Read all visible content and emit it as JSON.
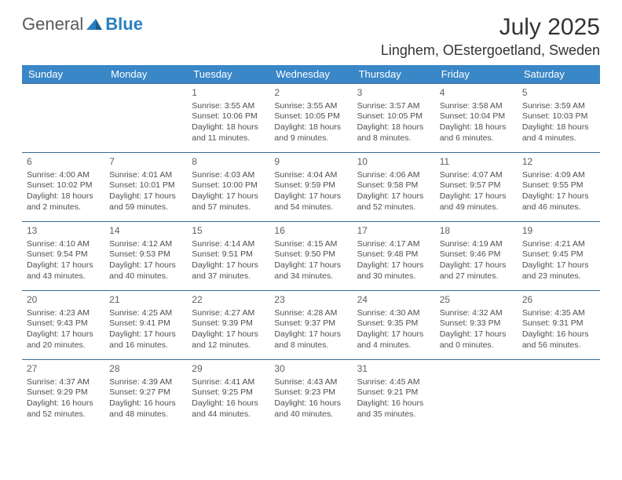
{
  "brand": {
    "part1": "General",
    "part2": "Blue"
  },
  "title": {
    "month": "July 2025",
    "location": "Linghem, OEstergoetland, Sweden"
  },
  "colors": {
    "header_bg": "#3a87c7",
    "header_text": "#ffffff",
    "row_divider": "#3a6a90",
    "body_text": "#4f4f4f",
    "brand_blue": "#2a7fbf",
    "brand_gray": "#5a5a5a",
    "page_bg": "#ffffff"
  },
  "headers": [
    "Sunday",
    "Monday",
    "Tuesday",
    "Wednesday",
    "Thursday",
    "Friday",
    "Saturday"
  ],
  "weeks": [
    [
      null,
      null,
      {
        "n": "1",
        "sr": "Sunrise: 3:55 AM",
        "ss": "Sunset: 10:06 PM",
        "dl": "Daylight: 18 hours and 11 minutes."
      },
      {
        "n": "2",
        "sr": "Sunrise: 3:55 AM",
        "ss": "Sunset: 10:05 PM",
        "dl": "Daylight: 18 hours and 9 minutes."
      },
      {
        "n": "3",
        "sr": "Sunrise: 3:57 AM",
        "ss": "Sunset: 10:05 PM",
        "dl": "Daylight: 18 hours and 8 minutes."
      },
      {
        "n": "4",
        "sr": "Sunrise: 3:58 AM",
        "ss": "Sunset: 10:04 PM",
        "dl": "Daylight: 18 hours and 6 minutes."
      },
      {
        "n": "5",
        "sr": "Sunrise: 3:59 AM",
        "ss": "Sunset: 10:03 PM",
        "dl": "Daylight: 18 hours and 4 minutes."
      }
    ],
    [
      {
        "n": "6",
        "sr": "Sunrise: 4:00 AM",
        "ss": "Sunset: 10:02 PM",
        "dl": "Daylight: 18 hours and 2 minutes."
      },
      {
        "n": "7",
        "sr": "Sunrise: 4:01 AM",
        "ss": "Sunset: 10:01 PM",
        "dl": "Daylight: 17 hours and 59 minutes."
      },
      {
        "n": "8",
        "sr": "Sunrise: 4:03 AM",
        "ss": "Sunset: 10:00 PM",
        "dl": "Daylight: 17 hours and 57 minutes."
      },
      {
        "n": "9",
        "sr": "Sunrise: 4:04 AM",
        "ss": "Sunset: 9:59 PM",
        "dl": "Daylight: 17 hours and 54 minutes."
      },
      {
        "n": "10",
        "sr": "Sunrise: 4:06 AM",
        "ss": "Sunset: 9:58 PM",
        "dl": "Daylight: 17 hours and 52 minutes."
      },
      {
        "n": "11",
        "sr": "Sunrise: 4:07 AM",
        "ss": "Sunset: 9:57 PM",
        "dl": "Daylight: 17 hours and 49 minutes."
      },
      {
        "n": "12",
        "sr": "Sunrise: 4:09 AM",
        "ss": "Sunset: 9:55 PM",
        "dl": "Daylight: 17 hours and 46 minutes."
      }
    ],
    [
      {
        "n": "13",
        "sr": "Sunrise: 4:10 AM",
        "ss": "Sunset: 9:54 PM",
        "dl": "Daylight: 17 hours and 43 minutes."
      },
      {
        "n": "14",
        "sr": "Sunrise: 4:12 AM",
        "ss": "Sunset: 9:53 PM",
        "dl": "Daylight: 17 hours and 40 minutes."
      },
      {
        "n": "15",
        "sr": "Sunrise: 4:14 AM",
        "ss": "Sunset: 9:51 PM",
        "dl": "Daylight: 17 hours and 37 minutes."
      },
      {
        "n": "16",
        "sr": "Sunrise: 4:15 AM",
        "ss": "Sunset: 9:50 PM",
        "dl": "Daylight: 17 hours and 34 minutes."
      },
      {
        "n": "17",
        "sr": "Sunrise: 4:17 AM",
        "ss": "Sunset: 9:48 PM",
        "dl": "Daylight: 17 hours and 30 minutes."
      },
      {
        "n": "18",
        "sr": "Sunrise: 4:19 AM",
        "ss": "Sunset: 9:46 PM",
        "dl": "Daylight: 17 hours and 27 minutes."
      },
      {
        "n": "19",
        "sr": "Sunrise: 4:21 AM",
        "ss": "Sunset: 9:45 PM",
        "dl": "Daylight: 17 hours and 23 minutes."
      }
    ],
    [
      {
        "n": "20",
        "sr": "Sunrise: 4:23 AM",
        "ss": "Sunset: 9:43 PM",
        "dl": "Daylight: 17 hours and 20 minutes."
      },
      {
        "n": "21",
        "sr": "Sunrise: 4:25 AM",
        "ss": "Sunset: 9:41 PM",
        "dl": "Daylight: 17 hours and 16 minutes."
      },
      {
        "n": "22",
        "sr": "Sunrise: 4:27 AM",
        "ss": "Sunset: 9:39 PM",
        "dl": "Daylight: 17 hours and 12 minutes."
      },
      {
        "n": "23",
        "sr": "Sunrise: 4:28 AM",
        "ss": "Sunset: 9:37 PM",
        "dl": "Daylight: 17 hours and 8 minutes."
      },
      {
        "n": "24",
        "sr": "Sunrise: 4:30 AM",
        "ss": "Sunset: 9:35 PM",
        "dl": "Daylight: 17 hours and 4 minutes."
      },
      {
        "n": "25",
        "sr": "Sunrise: 4:32 AM",
        "ss": "Sunset: 9:33 PM",
        "dl": "Daylight: 17 hours and 0 minutes."
      },
      {
        "n": "26",
        "sr": "Sunrise: 4:35 AM",
        "ss": "Sunset: 9:31 PM",
        "dl": "Daylight: 16 hours and 56 minutes."
      }
    ],
    [
      {
        "n": "27",
        "sr": "Sunrise: 4:37 AM",
        "ss": "Sunset: 9:29 PM",
        "dl": "Daylight: 16 hours and 52 minutes."
      },
      {
        "n": "28",
        "sr": "Sunrise: 4:39 AM",
        "ss": "Sunset: 9:27 PM",
        "dl": "Daylight: 16 hours and 48 minutes."
      },
      {
        "n": "29",
        "sr": "Sunrise: 4:41 AM",
        "ss": "Sunset: 9:25 PM",
        "dl": "Daylight: 16 hours and 44 minutes."
      },
      {
        "n": "30",
        "sr": "Sunrise: 4:43 AM",
        "ss": "Sunset: 9:23 PM",
        "dl": "Daylight: 16 hours and 40 minutes."
      },
      {
        "n": "31",
        "sr": "Sunrise: 4:45 AM",
        "ss": "Sunset: 9:21 PM",
        "dl": "Daylight: 16 hours and 35 minutes."
      },
      null,
      null
    ]
  ]
}
